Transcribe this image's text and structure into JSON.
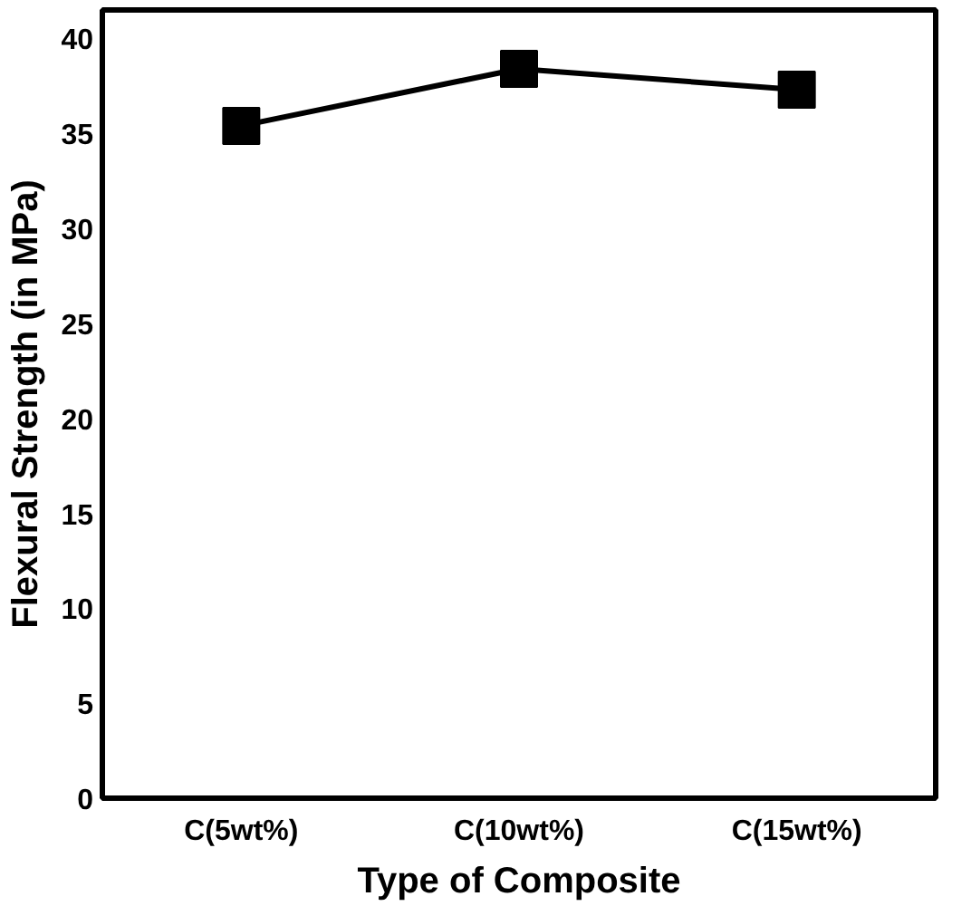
{
  "chart_data": {
    "type": "line",
    "xlabel": "Type of Composite",
    "ylabel": "Flexural Strength (in MPa)",
    "categories": [
      "C(5wt%)",
      "C(10wt%)",
      "C(15wt%)"
    ],
    "series": [
      {
        "color": "#000000",
        "values": [
          35.4,
          38.4,
          37.3
        ]
      }
    ],
    "ylim": [
      0,
      41.5
    ],
    "yticks": [
      0,
      5,
      10,
      15,
      20,
      25,
      30,
      35,
      40
    ],
    "marker": "square",
    "line_style": "solid"
  }
}
